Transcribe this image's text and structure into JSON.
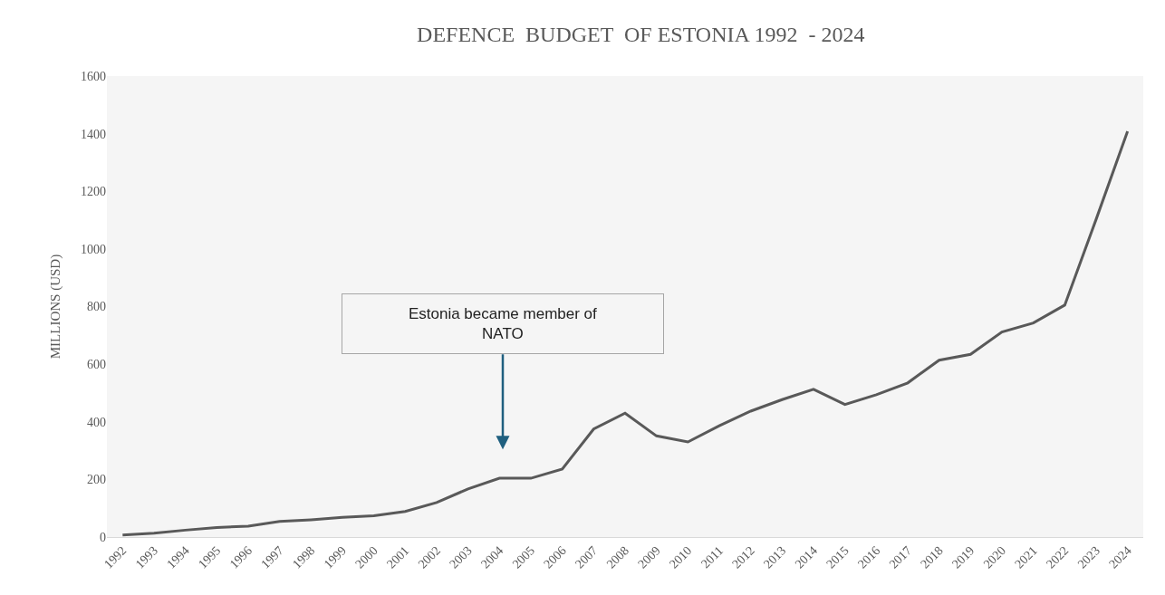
{
  "chart_data": {
    "type": "line",
    "title": "DEFENCE  BUDGET  OF ESTONIA 1992  - 2024",
    "ylabel": "MILLIONS (USD)",
    "categories": [
      "1992",
      "1993",
      "1994",
      "1995",
      "1996",
      "1997",
      "1998",
      "1999",
      "2000",
      "2001",
      "2002",
      "2003",
      "2004",
      "2005",
      "2006",
      "2007",
      "2008",
      "2009",
      "2010",
      "2011",
      "2012",
      "2013",
      "2014",
      "2015",
      "2016",
      "2017",
      "2018",
      "2019",
      "2020",
      "2021",
      "2022",
      "2023",
      "2024"
    ],
    "series": [
      {
        "color": "#595959",
        "values": [
          7,
          13,
          24,
          33,
          38,
          54,
          60,
          68,
          74,
          89,
          120,
          167,
          204,
          204,
          236,
          375,
          430,
          351,
          330,
          386,
          437,
          477,
          513,
          460,
          494,
          535,
          614,
          634,
          712,
          743,
          805,
          1103,
          1408
        ]
      }
    ],
    "ylim": [
      0,
      1600
    ],
    "yticks": [
      0,
      200,
      400,
      600,
      800,
      1000,
      1200,
      1400,
      1600
    ],
    "grid": false,
    "legend": false,
    "marker": "none",
    "line_style": "solid",
    "annotations": [
      "Estonia became member of NATO"
    ]
  }
}
